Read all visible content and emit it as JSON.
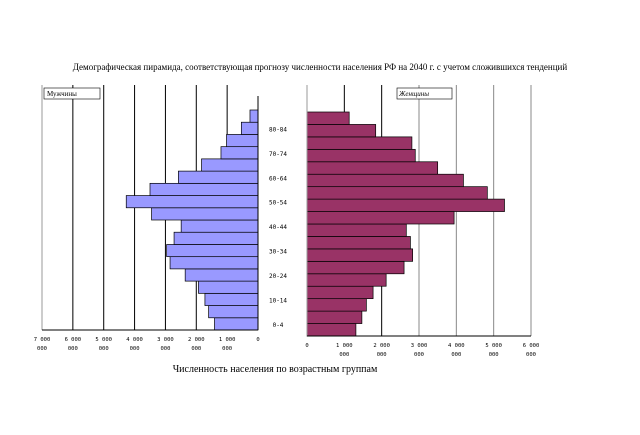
{
  "chart_data": {
    "type": "bar",
    "title": "Демографическая пирамида, соответствующая прогнозу численности населения РФ на 2040 г. с учетом сложившихся тенденций",
    "xlabel": "Численность населения по возрастным группам",
    "categories": [
      "0-4",
      "5-9",
      "10-14",
      "15-19",
      "20-24",
      "25-29",
      "30-34",
      "35-39",
      "40-44",
      "45-49",
      "50-54",
      "55-59",
      "60-64",
      "65-69",
      "70-74",
      "75-79",
      "80-84",
      "85+"
    ],
    "shown_category_labels": [
      "0-4",
      "10-14",
      "20-24",
      "30-34",
      "40-44",
      "50-54",
      "60-64",
      "70-74",
      "80-84"
    ],
    "series": [
      {
        "name": "Мужчины",
        "color": "#9999FF",
        "xlim": [
          7000000,
          0
        ],
        "ticks": [
          "7 000 000",
          "6 000 000",
          "5 000 000",
          "4 000 000",
          "3 000 000",
          "2 000 000",
          "1 000 000",
          "0"
        ],
        "values": [
          1410000,
          1600000,
          1720000,
          1930000,
          2360000,
          2850000,
          2960000,
          2720000,
          2490000,
          3450000,
          4270000,
          3500000,
          2580000,
          1830000,
          1200000,
          1020000,
          540000,
          260000
        ]
      },
      {
        "name": "Женщины",
        "color": "#993366",
        "xlim": [
          0,
          6000000
        ],
        "ticks": [
          "0",
          "1 000 000",
          "2 000 000",
          "3 000 000",
          "4 000 000",
          "5 000 000",
          "6 000 000"
        ],
        "values": [
          1310000,
          1470000,
          1590000,
          1770000,
          2120000,
          2600000,
          2830000,
          2770000,
          2660000,
          3940000,
          5290000,
          4830000,
          4190000,
          3500000,
          2900000,
          2810000,
          1840000,
          1130000
        ]
      }
    ],
    "grid": true,
    "legend": "top-left inside each panel"
  }
}
